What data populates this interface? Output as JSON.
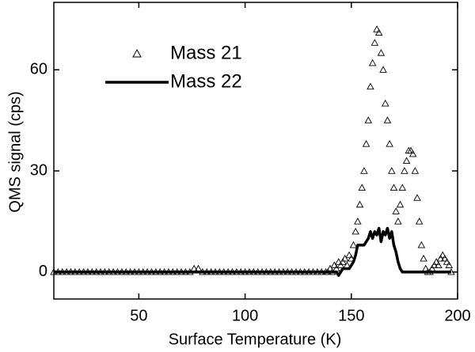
{
  "chart_data": {
    "type": "line",
    "x_label": "Surface Temperature (K)",
    "y_label": "QMS signal (cps)",
    "x": [
      10,
      12,
      14,
      16,
      18,
      20,
      22,
      24,
      26,
      28,
      30,
      32,
      34,
      36,
      38,
      40,
      42,
      44,
      46,
      48,
      50,
      52,
      54,
      56,
      58,
      60,
      62,
      64,
      66,
      68,
      70,
      72,
      74,
      76,
      78,
      80,
      82,
      84,
      86,
      88,
      90,
      92,
      94,
      96,
      98,
      100,
      102,
      104,
      106,
      108,
      110,
      112,
      114,
      116,
      118,
      120,
      122,
      124,
      126,
      128,
      130,
      132,
      134,
      136,
      138,
      139,
      140,
      141,
      142,
      143,
      144,
      145,
      146,
      147,
      148,
      149,
      150,
      151,
      152,
      153,
      154,
      155,
      156,
      157,
      158,
      159,
      160,
      161,
      162,
      163,
      164,
      165,
      166,
      167,
      168,
      169,
      170,
      171,
      172,
      173,
      174,
      175,
      176,
      177,
      178,
      179,
      180,
      181,
      182,
      183,
      184,
      185,
      186,
      187,
      188,
      189,
      190,
      191,
      192,
      193,
      194,
      195,
      196,
      197
    ],
    "series": [
      {
        "name": "Mass 21",
        "color": "#000000",
        "marker": "triangle",
        "values": [
          0,
          0,
          0,
          0,
          0,
          0,
          0,
          0,
          0,
          0,
          0,
          0,
          0,
          0,
          0,
          0,
          0,
          0,
          0,
          0,
          0,
          0,
          0,
          0,
          0,
          0,
          0,
          0,
          0,
          0,
          0,
          0,
          0,
          1,
          1,
          0,
          0,
          0,
          0,
          0,
          0,
          0,
          0,
          0,
          0,
          0,
          0,
          0,
          0,
          0,
          0,
          0,
          0,
          0,
          0,
          0,
          0,
          0,
          0,
          0,
          0,
          0,
          0,
          0,
          0,
          0,
          1,
          0,
          2,
          1,
          3,
          2,
          3,
          4,
          2,
          5,
          4,
          8,
          12,
          15,
          20,
          25,
          30,
          38,
          45,
          55,
          62,
          68,
          72,
          71,
          65,
          60,
          50,
          45,
          38,
          30,
          25,
          18,
          15,
          20,
          25,
          30,
          33,
          36,
          36,
          35,
          30,
          22,
          15,
          8,
          4,
          1,
          0,
          0,
          1,
          2,
          3,
          2,
          4,
          5,
          4,
          3,
          2,
          0
        ]
      },
      {
        "name": "Mass 22",
        "color": "#000000",
        "marker": "line",
        "values": [
          0,
          0,
          0,
          0,
          0,
          0,
          0,
          0,
          0,
          0,
          0,
          0,
          0,
          0,
          0,
          0,
          0,
          0,
          0,
          0,
          0,
          0,
          0,
          0,
          0,
          0,
          0,
          0,
          0,
          0,
          0,
          0,
          0,
          0,
          0,
          0,
          0,
          0,
          0,
          0,
          0,
          0,
          0,
          0,
          0,
          0,
          0,
          0,
          0,
          0,
          0,
          0,
          0,
          0,
          0,
          0,
          0,
          0,
          0,
          0,
          0,
          0,
          0,
          0,
          0,
          0,
          0,
          0,
          0,
          0,
          -1,
          0,
          1,
          1,
          1,
          1,
          2,
          3,
          5,
          8,
          8,
          8,
          8,
          9,
          10,
          12,
          10,
          12,
          11,
          13,
          9,
          12,
          11,
          13,
          10,
          12,
          8,
          6,
          3,
          1,
          0,
          0,
          0,
          0,
          0,
          0,
          0,
          0,
          0,
          0,
          0,
          0,
          0,
          0,
          0,
          0,
          0,
          0,
          0,
          0,
          0,
          0,
          0,
          0
        ]
      }
    ],
    "xlim": [
      10,
      200
    ],
    "ylim": [
      -8,
      80
    ],
    "xticks": [
      50,
      100,
      150,
      200
    ],
    "yticks": [
      0,
      30,
      60
    ],
    "legend": "upper-left",
    "grid": false
  }
}
